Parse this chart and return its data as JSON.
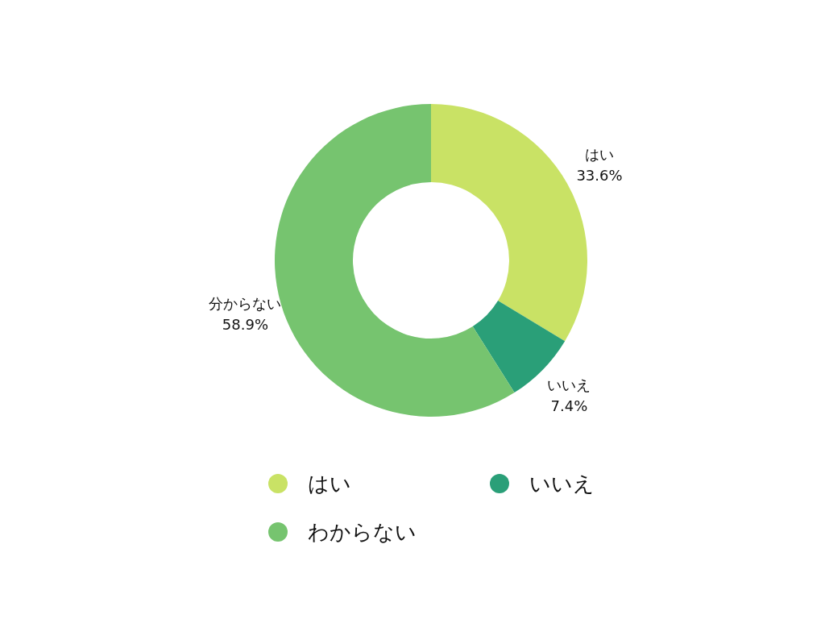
{
  "chart_data": {
    "type": "donut",
    "categories": [
      "はい",
      "いいえ",
      "わからない"
    ],
    "values": [
      33.6,
      7.4,
      58.9
    ],
    "colors": [
      "#c9e265",
      "#2a9f78",
      "#76c46f"
    ],
    "value_labels": [
      "はい\n33.6%",
      "いいえ\n7.4%",
      "分からない\n58.9%"
    ],
    "legend": "bottom"
  }
}
